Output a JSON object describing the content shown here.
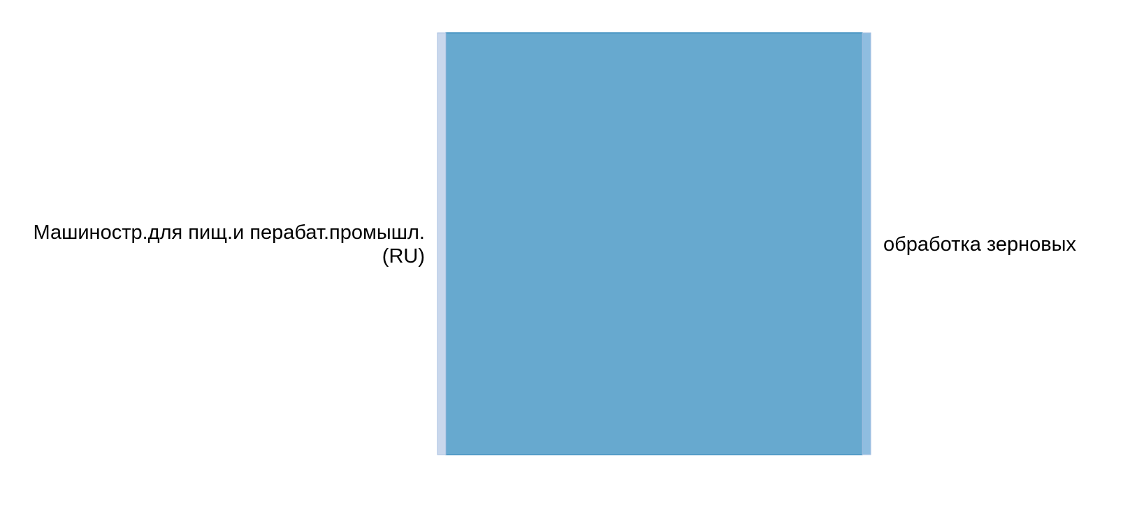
{
  "chart_data": {
    "type": "sankey",
    "nodes": [
      {
        "name": "Машиностр.для пищ.и перабат.промышл. (RU)",
        "label_lines": [
          "Машиностр.для пищ.и перабат.промышл.",
          "(RU)"
        ],
        "side": "left",
        "color": "#c9d7ec"
      },
      {
        "name": "обработка зерновых",
        "label_lines": [
          "обработка зерновых"
        ],
        "side": "right",
        "color": "#8fbde0"
      }
    ],
    "links": [
      {
        "source": "Машиностр.для пищ.и перабат.промышл. (RU)",
        "target": "обработка зерновых",
        "value": 1,
        "color": "#67a9cf"
      }
    ]
  },
  "colors": {
    "link_fill": "#67a9cf",
    "link_stroke": "#3f8fbf",
    "left_node_fill": "#c9d7ec",
    "right_node_fill": "#8fbde0",
    "node_stroke": "#a9c1e2"
  }
}
